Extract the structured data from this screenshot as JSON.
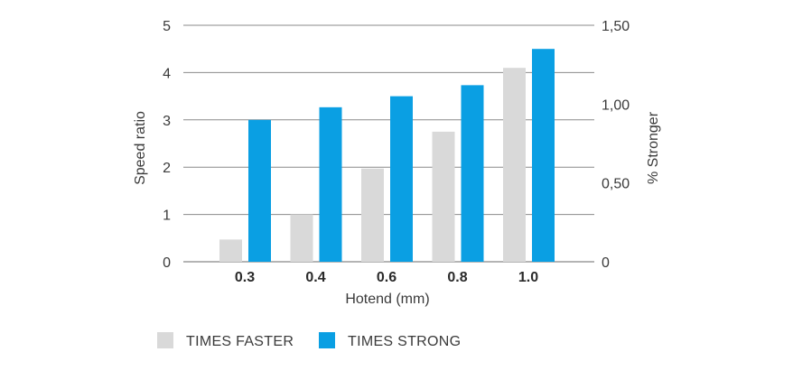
{
  "chart_data": {
    "type": "bar",
    "categories": [
      "0.3",
      "0.4",
      "0.6",
      "0.8",
      "1.0"
    ],
    "xlabel": "Hotend (mm)",
    "ylabel": "Speed ratio",
    "y2label": "% Stronger",
    "ylim": [
      0,
      5
    ],
    "y2lim": [
      0,
      1.5
    ],
    "yticks": [
      "0",
      "1",
      "2",
      "3",
      "4",
      "5"
    ],
    "y2ticks": [
      "0",
      "0,50",
      "1,00",
      "1,50"
    ],
    "grid": true,
    "legend_position": "bottom-left",
    "series": [
      {
        "name": "TIMES FASTER",
        "axis": "left",
        "color": "#d9d9d9",
        "values": [
          0.47,
          1.0,
          1.97,
          2.75,
          4.1
        ]
      },
      {
        "name": "TIMES STRONG",
        "axis": "right",
        "color": "#0a9fe3",
        "values": [
          0.9,
          0.98,
          1.05,
          1.12,
          1.35
        ]
      }
    ]
  }
}
